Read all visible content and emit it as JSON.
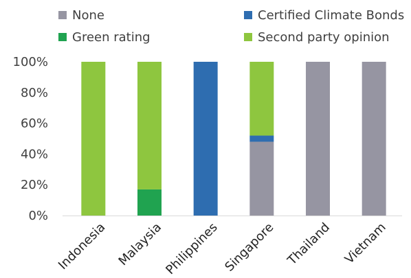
{
  "chart_data": {
    "type": "bar",
    "stacked": true,
    "title": "",
    "xlabel": "",
    "ylabel": "",
    "categories": [
      "Indonesia",
      "Malaysia",
      "Philippines",
      "Singapore",
      "Thailand",
      "Vietnam"
    ],
    "series": [
      {
        "name": "None",
        "color": "#9695a2",
        "values": [
          0,
          0,
          0,
          48,
          100,
          100
        ]
      },
      {
        "name": "Green rating",
        "color": "#20a350",
        "values": [
          0,
          17,
          0,
          0,
          0,
          0
        ]
      },
      {
        "name": "Certified Climate Bonds",
        "color": "#2e6db0",
        "values": [
          0,
          0,
          100,
          4,
          0,
          0
        ]
      },
      {
        "name": "Second party opinion",
        "color": "#8ec63f",
        "values": [
          100,
          83,
          0,
          48,
          0,
          0
        ]
      }
    ],
    "ylim": [
      0,
      100
    ],
    "yticks": [
      0,
      20,
      40,
      60,
      80,
      100
    ],
    "ytick_labels": [
      "0%",
      "20%",
      "40%",
      "60%",
      "80%",
      "100%"
    ],
    "grid": false,
    "legend": {
      "position": "top",
      "order": [
        "None",
        "Certified Climate Bonds",
        "Green rating",
        "Second party opinion"
      ]
    }
  }
}
